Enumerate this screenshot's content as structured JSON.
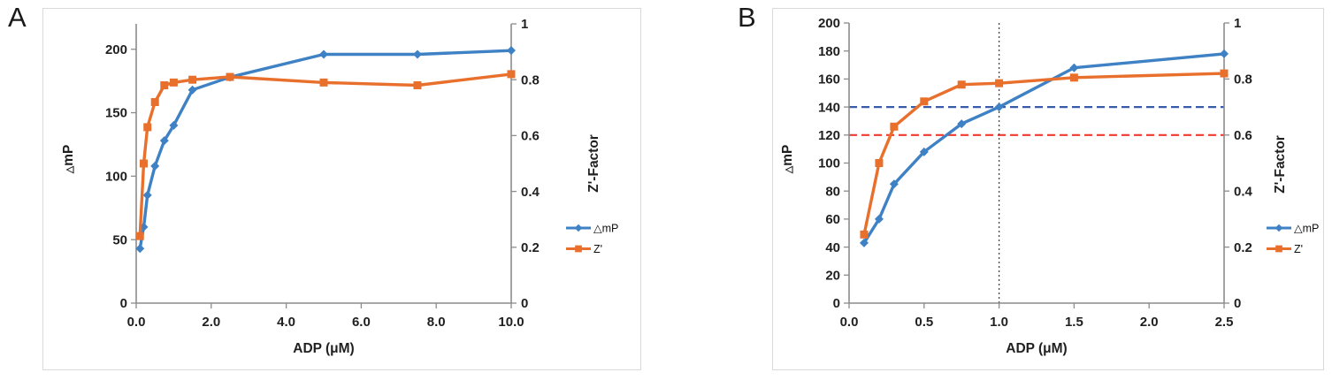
{
  "page": {
    "background": "#ffffff",
    "panel_border_color": "#d9d9d9",
    "axis_line_color": "#8c8c8c",
    "tick_text_color": "#1f1f1f"
  },
  "panels": [
    {
      "label": "A"
    },
    {
      "label": "B"
    }
  ],
  "chart_data": [
    {
      "panel": "A",
      "type": "line",
      "title": "",
      "xlabel": "ADP (μM)",
      "ylabel_left": "△mP",
      "ylabel_right": "Z'-Factor",
      "x": [
        0.1,
        0.2,
        0.3,
        0.5,
        0.75,
        1.0,
        1.5,
        2.5,
        5.0,
        7.5,
        10.0
      ],
      "series": [
        {
          "name": "△mP",
          "axis": "left",
          "color": "#3E81C4",
          "marker": "diamond",
          "values": [
            43,
            60,
            85,
            108,
            128,
            140,
            168,
            178,
            196,
            196,
            199
          ]
        },
        {
          "name": "Z'",
          "axis": "right",
          "color": "#E8702C",
          "marker": "square",
          "values": [
            0.24,
            0.5,
            0.63,
            0.72,
            0.78,
            0.79,
            0.8,
            0.81,
            0.79,
            0.78,
            0.82
          ]
        }
      ],
      "xlim": [
        0,
        10
      ],
      "xticks": [
        0,
        2,
        4,
        6,
        8,
        10
      ],
      "ylim_left": [
        0,
        220
      ],
      "yticks_left": [
        0,
        50,
        100,
        150,
        200
      ],
      "ylim_right": [
        0,
        1
      ],
      "yticks_right": [
        0,
        0.2,
        0.4,
        0.6,
        0.8,
        1
      ],
      "grid": false,
      "legend": {
        "position": "right",
        "entries": [
          "△mP",
          "Z'"
        ]
      },
      "annotations": []
    },
    {
      "panel": "B",
      "type": "line",
      "title": "",
      "xlabel": "ADP (μM)",
      "ylabel_left": "△mP",
      "ylabel_right": "Z'-Factor",
      "x": [
        0.1,
        0.2,
        0.3,
        0.5,
        0.75,
        1.0,
        1.5,
        2.5
      ],
      "series": [
        {
          "name": "△mP",
          "axis": "left",
          "color": "#3E81C4",
          "marker": "diamond",
          "values": [
            43,
            60,
            85,
            108,
            128,
            140,
            168,
            178
          ]
        },
        {
          "name": "Z'",
          "axis": "right",
          "color": "#E8702C",
          "marker": "square",
          "values": [
            0.245,
            0.5,
            0.63,
            0.72,
            0.78,
            0.785,
            0.805,
            0.82
          ]
        }
      ],
      "xlim": [
        0,
        2.5
      ],
      "xticks": [
        0,
        0.5,
        1,
        1.5,
        2,
        2.5
      ],
      "ylim_left": [
        0,
        200
      ],
      "yticks_left": [
        0,
        20,
        40,
        60,
        80,
        100,
        120,
        140,
        160,
        180,
        200
      ],
      "ylim_right": [
        0,
        1
      ],
      "yticks_right": [
        0,
        0.2,
        0.4,
        0.6,
        0.8,
        1
      ],
      "grid": false,
      "legend": {
        "position": "right",
        "entries": [
          "△mP",
          "Z'"
        ]
      },
      "annotations": [
        {
          "type": "hline",
          "axis": "left",
          "value": 140,
          "color": "#3B5BA9",
          "style": "dashed"
        },
        {
          "type": "hline",
          "axis": "left",
          "value": 120,
          "color": "#EE3A31",
          "style": "dashed"
        },
        {
          "type": "vline",
          "value": 1.0,
          "color": "#474747",
          "style": "dotted"
        }
      ]
    }
  ]
}
